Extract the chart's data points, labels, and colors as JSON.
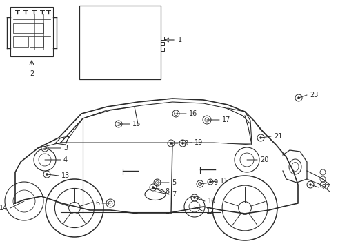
{
  "bg_color": "#ffffff",
  "line_color": "#2a2a2a",
  "fig_width": 4.9,
  "fig_height": 3.6,
  "dpi": 100,
  "label_fontsize": 7.0
}
